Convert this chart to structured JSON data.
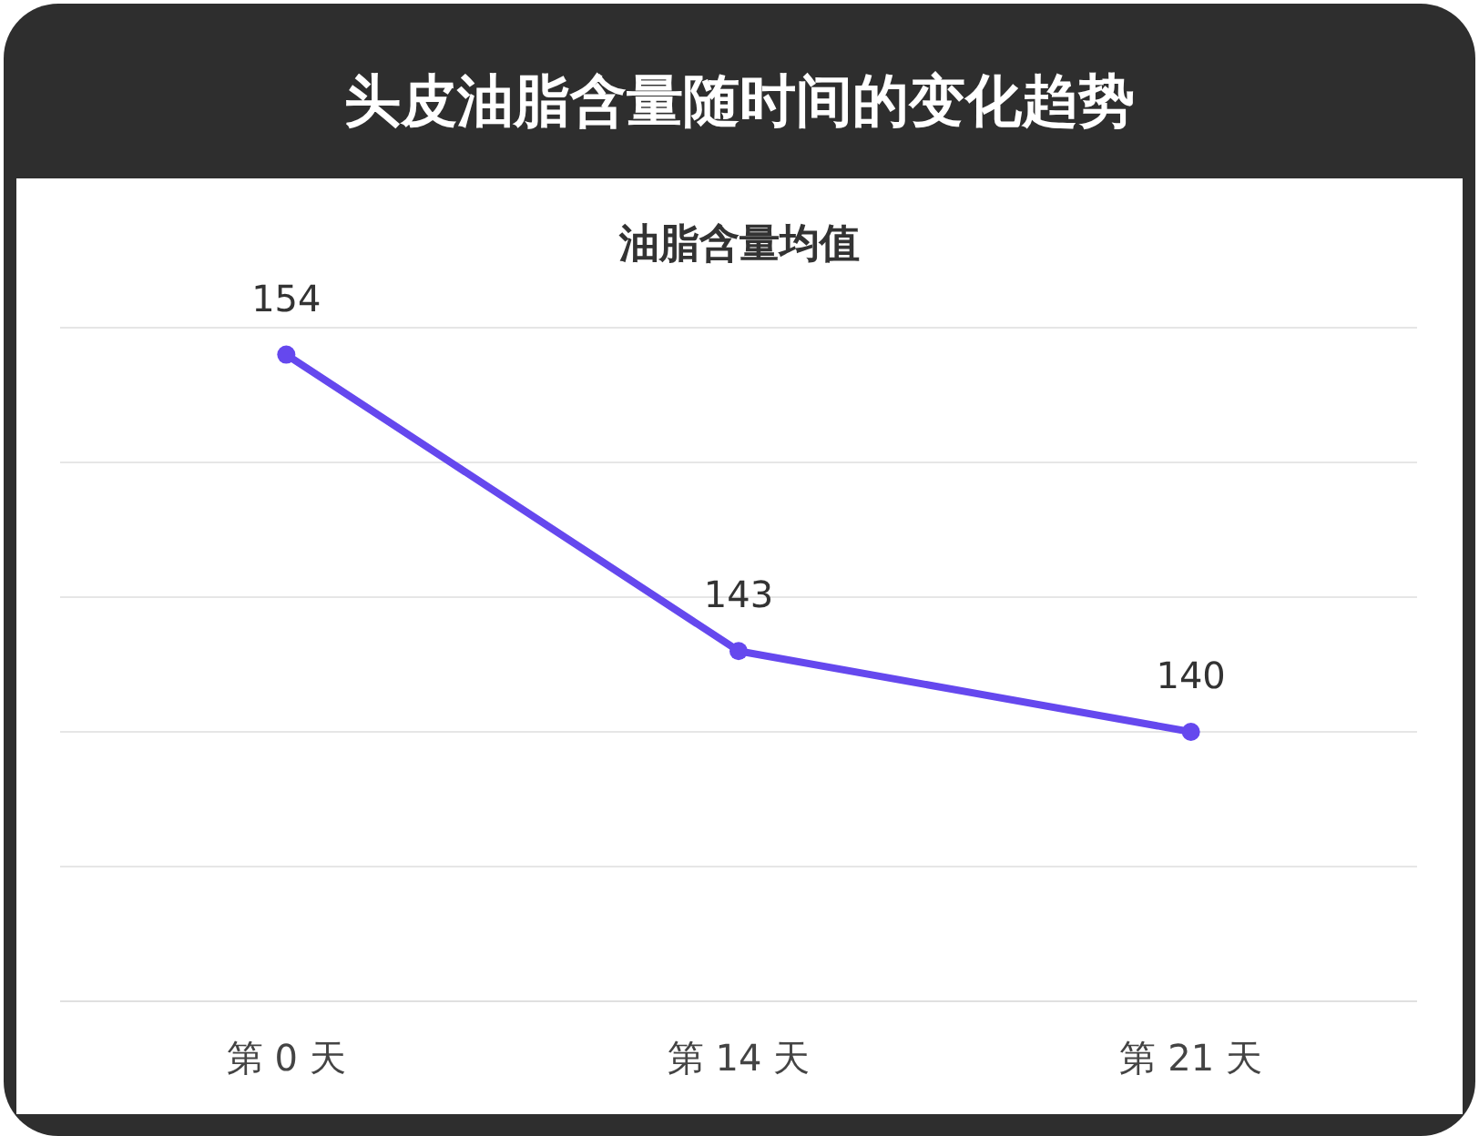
{
  "chart_data": {
    "type": "line",
    "title": "头皮油脂含量随时间的变化趋势",
    "subtitle": "油脂含量均值",
    "categories": [
      "第 0 天",
      "第 14 天",
      "第 21 天"
    ],
    "series": [
      {
        "color": "#6548ee",
        "values": [
          154,
          143,
          140
        ]
      }
    ],
    "ylim": [
      130,
      155
    ],
    "yticks": [
      {
        "value": 130,
        "label": null
      },
      {
        "value": 135,
        "label": null
      },
      {
        "value": 140,
        "label": null
      },
      {
        "value": 145,
        "label": null
      },
      {
        "value": 150,
        "label": null
      },
      {
        "value": 155,
        "label": null
      }
    ],
    "tick_labels": "x",
    "grid": "y",
    "marker": "circle",
    "line_style": "solid",
    "data_labels": true
  }
}
